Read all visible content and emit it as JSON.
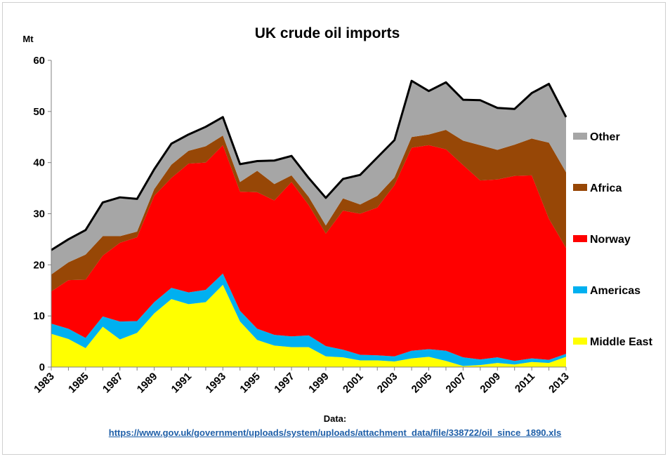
{
  "chart_data": {
    "type": "area",
    "stacked": true,
    "title": "UK crude oil imports",
    "unit_label": "Mt",
    "ylim": [
      0,
      60
    ],
    "yticks": [
      0,
      10,
      20,
      30,
      40,
      50,
      60
    ],
    "x": [
      1983,
      1984,
      1985,
      1986,
      1987,
      1988,
      1989,
      1990,
      1991,
      1992,
      1993,
      1994,
      1995,
      1996,
      1997,
      1998,
      1999,
      2000,
      2001,
      2002,
      2003,
      2004,
      2005,
      2006,
      2007,
      2008,
      2009,
      2010,
      2011,
      2012,
      2013
    ],
    "xticks": [
      1983,
      1985,
      1987,
      1989,
      1991,
      1993,
      1995,
      1997,
      1999,
      2001,
      2003,
      2005,
      2007,
      2009,
      2011,
      2013
    ],
    "grid": false,
    "legend_position": "right",
    "series": [
      {
        "name": "Middle East",
        "color": "#ffff00",
        "values": [
          6.5,
          5.5,
          3.7,
          7.9,
          5.4,
          6.7,
          10.5,
          13.3,
          12.3,
          12.7,
          16.1,
          8.9,
          5.3,
          4.2,
          3.9,
          3.9,
          2.1,
          1.9,
          1.3,
          1.3,
          1.1,
          1.7,
          2.0,
          1.2,
          0.2,
          0.4,
          0.8,
          0.5,
          1.0,
          0.8,
          2.0
        ]
      },
      {
        "name": "Americas",
        "color": "#00b0f0",
        "values": [
          2.0,
          2.0,
          2.0,
          2.0,
          3.5,
          2.3,
          2.2,
          2.2,
          2.3,
          2.4,
          2.2,
          2.1,
          2.2,
          2.1,
          2.1,
          2.3,
          2.0,
          1.5,
          1.1,
          1.0,
          1.0,
          1.5,
          1.5,
          2.0,
          1.7,
          1.1,
          1.1,
          0.7,
          0.7,
          0.6,
          0.6
        ]
      },
      {
        "name": "Norway",
        "color": "#ff0000",
        "values": [
          6.3,
          9.5,
          11.4,
          11.9,
          15.4,
          16.4,
          20.8,
          21.5,
          25.2,
          24.9,
          25.1,
          23.3,
          26.7,
          26.3,
          30.2,
          25.5,
          22.0,
          27.2,
          27.6,
          28.9,
          33.5,
          39.7,
          39.9,
          39.4,
          37.6,
          35.0,
          34.8,
          36.2,
          35.8,
          27.6,
          20.7
        ]
      },
      {
        "name": "Africa",
        "color": "#974706",
        "values": [
          3.3,
          3.5,
          4.9,
          3.8,
          1.3,
          1.1,
          1.3,
          2.6,
          2.5,
          3.2,
          1.9,
          1.9,
          4.2,
          3.2,
          1.3,
          1.6,
          1.6,
          2.4,
          1.8,
          2.3,
          1.5,
          2.1,
          2.1,
          3.8,
          4.8,
          6.9,
          5.8,
          6.1,
          7.2,
          14.9,
          14.8
        ]
      },
      {
        "name": "Other",
        "color": "#a6a6a6",
        "values": [
          4.8,
          4.5,
          4.8,
          6.6,
          7.6,
          6.4,
          3.9,
          4.1,
          3.2,
          3.8,
          3.6,
          3.5,
          1.9,
          4.6,
          3.8,
          3.7,
          5.4,
          3.8,
          5.8,
          7.5,
          7.3,
          11.0,
          8.5,
          9.3,
          8.0,
          8.8,
          8.2,
          7.0,
          8.9,
          11.5,
          10.8
        ]
      }
    ],
    "total_line_color": "#000000"
  },
  "footer": {
    "data_label": "Data:",
    "source_url": "https://www.gov.uk/government/uploads/system/uploads/attachment_data/file/338722/oil_since_1890.xls"
  }
}
